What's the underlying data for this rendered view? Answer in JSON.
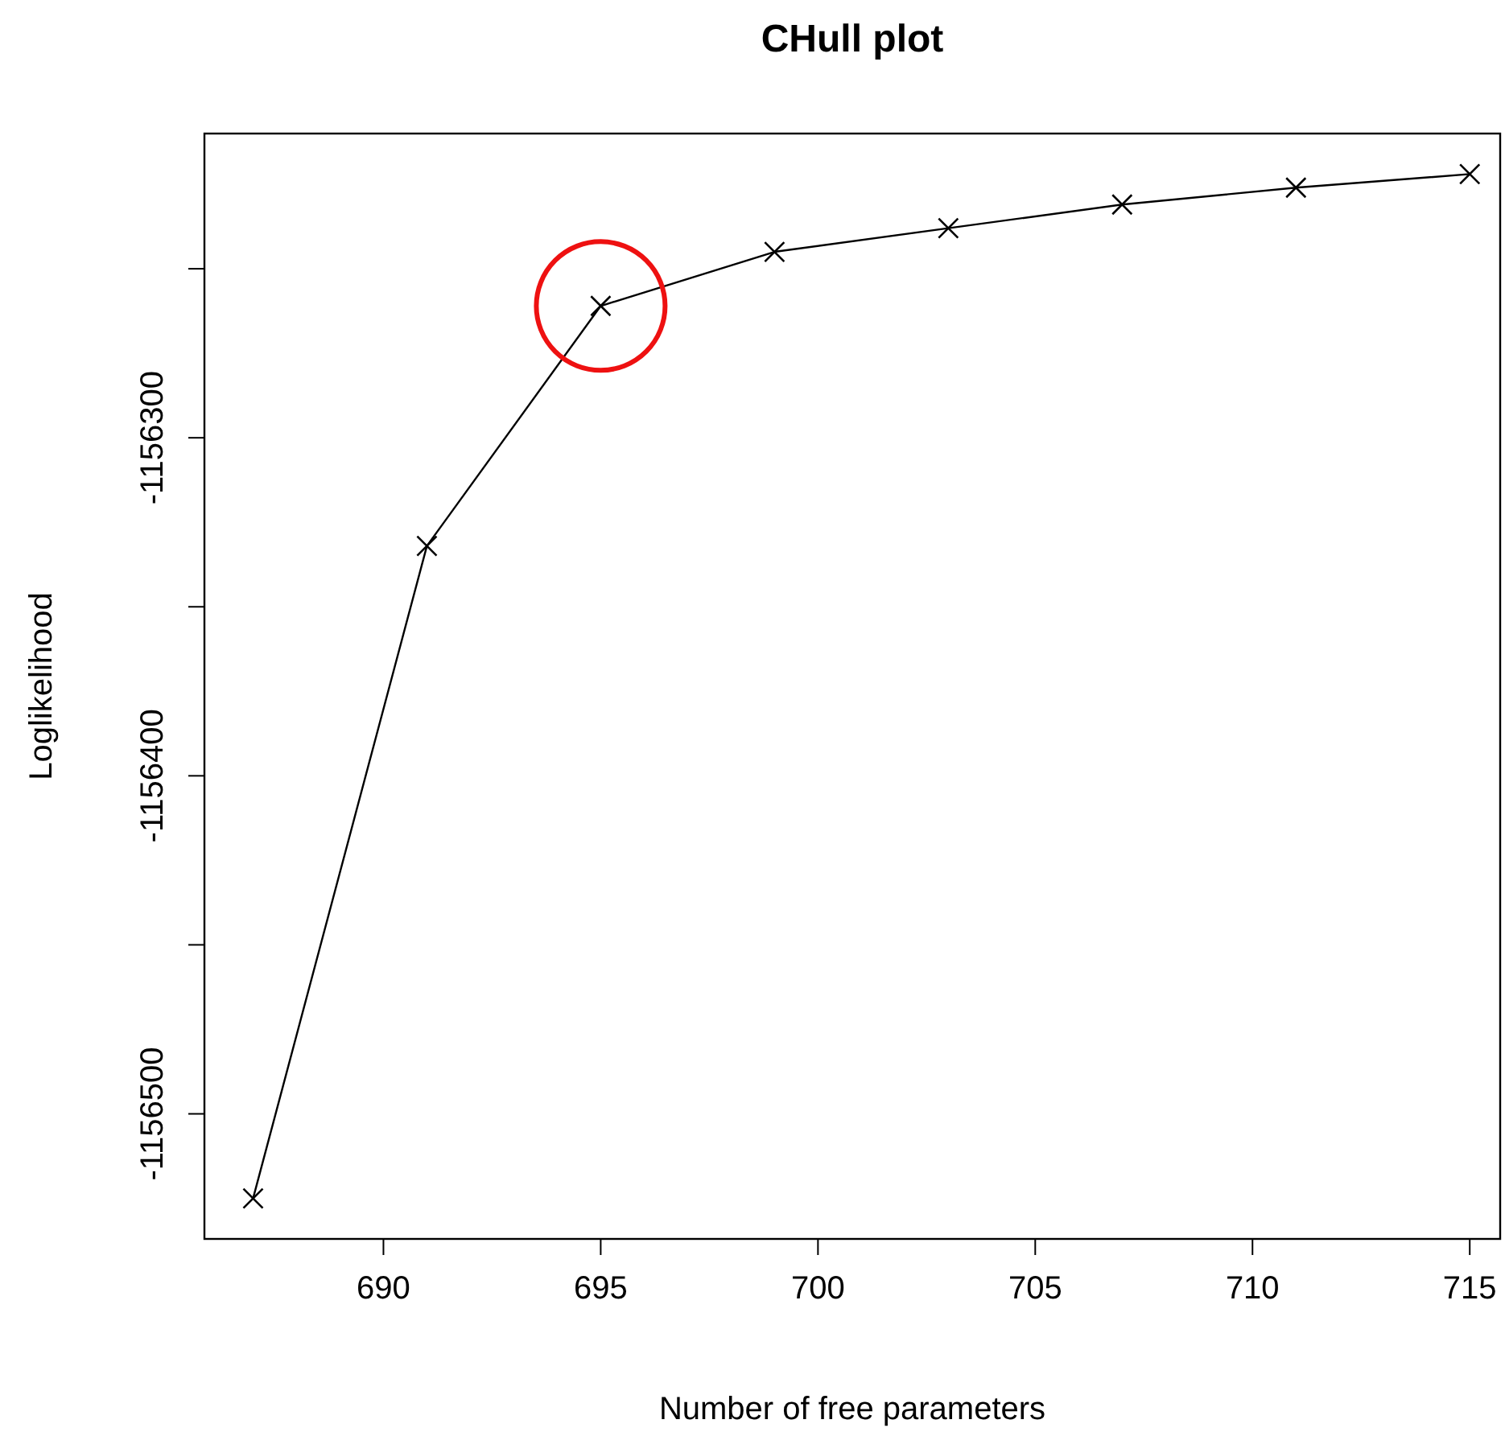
{
  "chart_data": {
    "type": "line",
    "title": "CHull plot",
    "xlabel": "Number of free parameters",
    "ylabel": "Loglikelihood",
    "x": [
      687,
      691,
      695,
      699,
      703,
      707,
      711,
      715
    ],
    "series": [
      {
        "color": "#000000",
        "values": [
          -1156525,
          -1156332,
          -1156261,
          -1156245,
          -1156238,
          -1156231,
          -1156226,
          -1156222
        ]
      }
    ],
    "xlim": [
      685.88,
      715.7
    ],
    "ylim": [
      -1156537,
      -1156210
    ],
    "xticks": [
      690,
      695,
      700,
      705,
      710,
      715
    ],
    "yticks": [
      {
        "value": -1156500,
        "label": "-1156500"
      },
      {
        "value": -1156450,
        "label": null
      },
      {
        "value": -1156400,
        "label": "-1156400"
      },
      {
        "value": -1156350,
        "label": null
      },
      {
        "value": -1156300,
        "label": "-1156300"
      },
      {
        "value": -1156250,
        "label": null
      }
    ],
    "marker": "cross",
    "line_style": "solid",
    "grid": false
  }
}
